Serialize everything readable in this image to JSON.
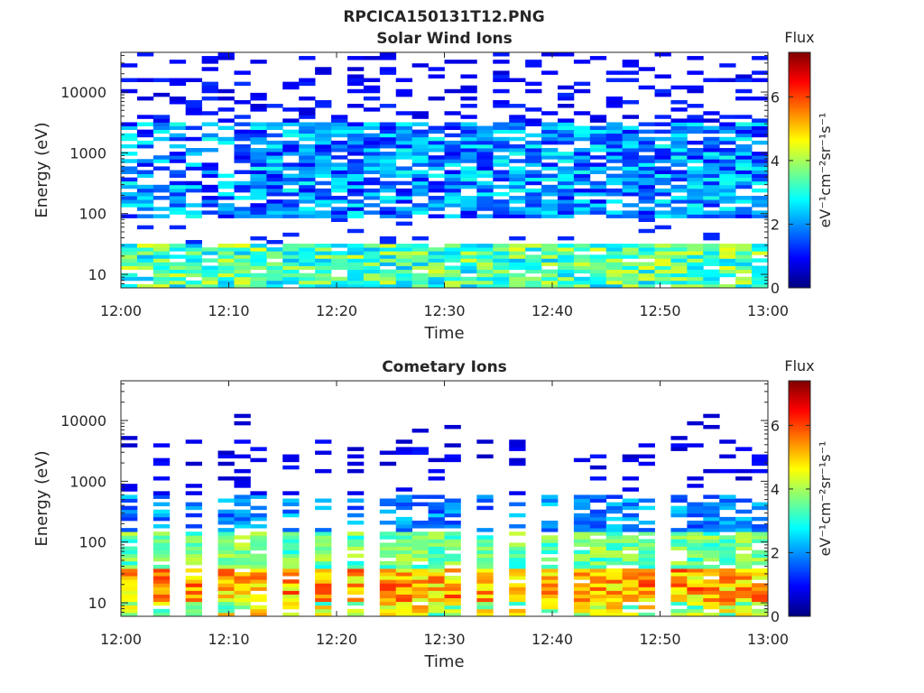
{
  "figure_title": "RPCICA150131T12.PNG",
  "colormap": [
    "#00007f",
    "#0000ff",
    "#007fff",
    "#00ffff",
    "#7fff7f",
    "#ffff00",
    "#ff7f00",
    "#ff0000",
    "#7f0000"
  ],
  "chart_data": [
    {
      "type": "heatmap",
      "title": "Solar Wind Ions",
      "xlabel": "Time",
      "ylabel": "Energy (eV)",
      "x_ticks": [
        "12:00",
        "12:10",
        "12:20",
        "12:30",
        "12:40",
        "12:50",
        "13:00"
      ],
      "x_range": [
        "12:00",
        "13:00"
      ],
      "y_scale": "log",
      "y_range": [
        6,
        45000
      ],
      "y_ticks": [
        10,
        100,
        1000,
        10000
      ],
      "y_tick_labels": [
        "10",
        "100",
        "1000",
        "10000"
      ],
      "colorbar": {
        "label": "Flux",
        "units": "eV⁻¹cm⁻²sr⁻¹s⁻¹",
        "range": [
          0,
          7.4
        ],
        "ticks": [
          0,
          2,
          4,
          6
        ],
        "tick_labels": [
          "0",
          "2",
          "4",
          "6"
        ]
      },
      "pattern": "solar-wind",
      "seed": 7
    },
    {
      "type": "heatmap",
      "title": "Cometary Ions",
      "xlabel": "Time",
      "ylabel": "Energy (eV)",
      "x_ticks": [
        "12:00",
        "12:10",
        "12:20",
        "12:30",
        "12:40",
        "12:50",
        "13:00"
      ],
      "x_range": [
        "12:00",
        "13:00"
      ],
      "y_scale": "log",
      "y_range": [
        6,
        45000
      ],
      "y_ticks": [
        10,
        100,
        1000,
        10000
      ],
      "y_tick_labels": [
        "10",
        "100",
        "1000",
        "10000"
      ],
      "colorbar": {
        "label": "Flux",
        "units": "eV⁻¹cm⁻²sr⁻¹s⁻¹",
        "range": [
          0,
          7.4
        ],
        "ticks": [
          0,
          2,
          4,
          6
        ],
        "tick_labels": [
          "0",
          "2",
          "4",
          "6"
        ]
      },
      "pattern": "cometary",
      "seed": 23
    }
  ]
}
